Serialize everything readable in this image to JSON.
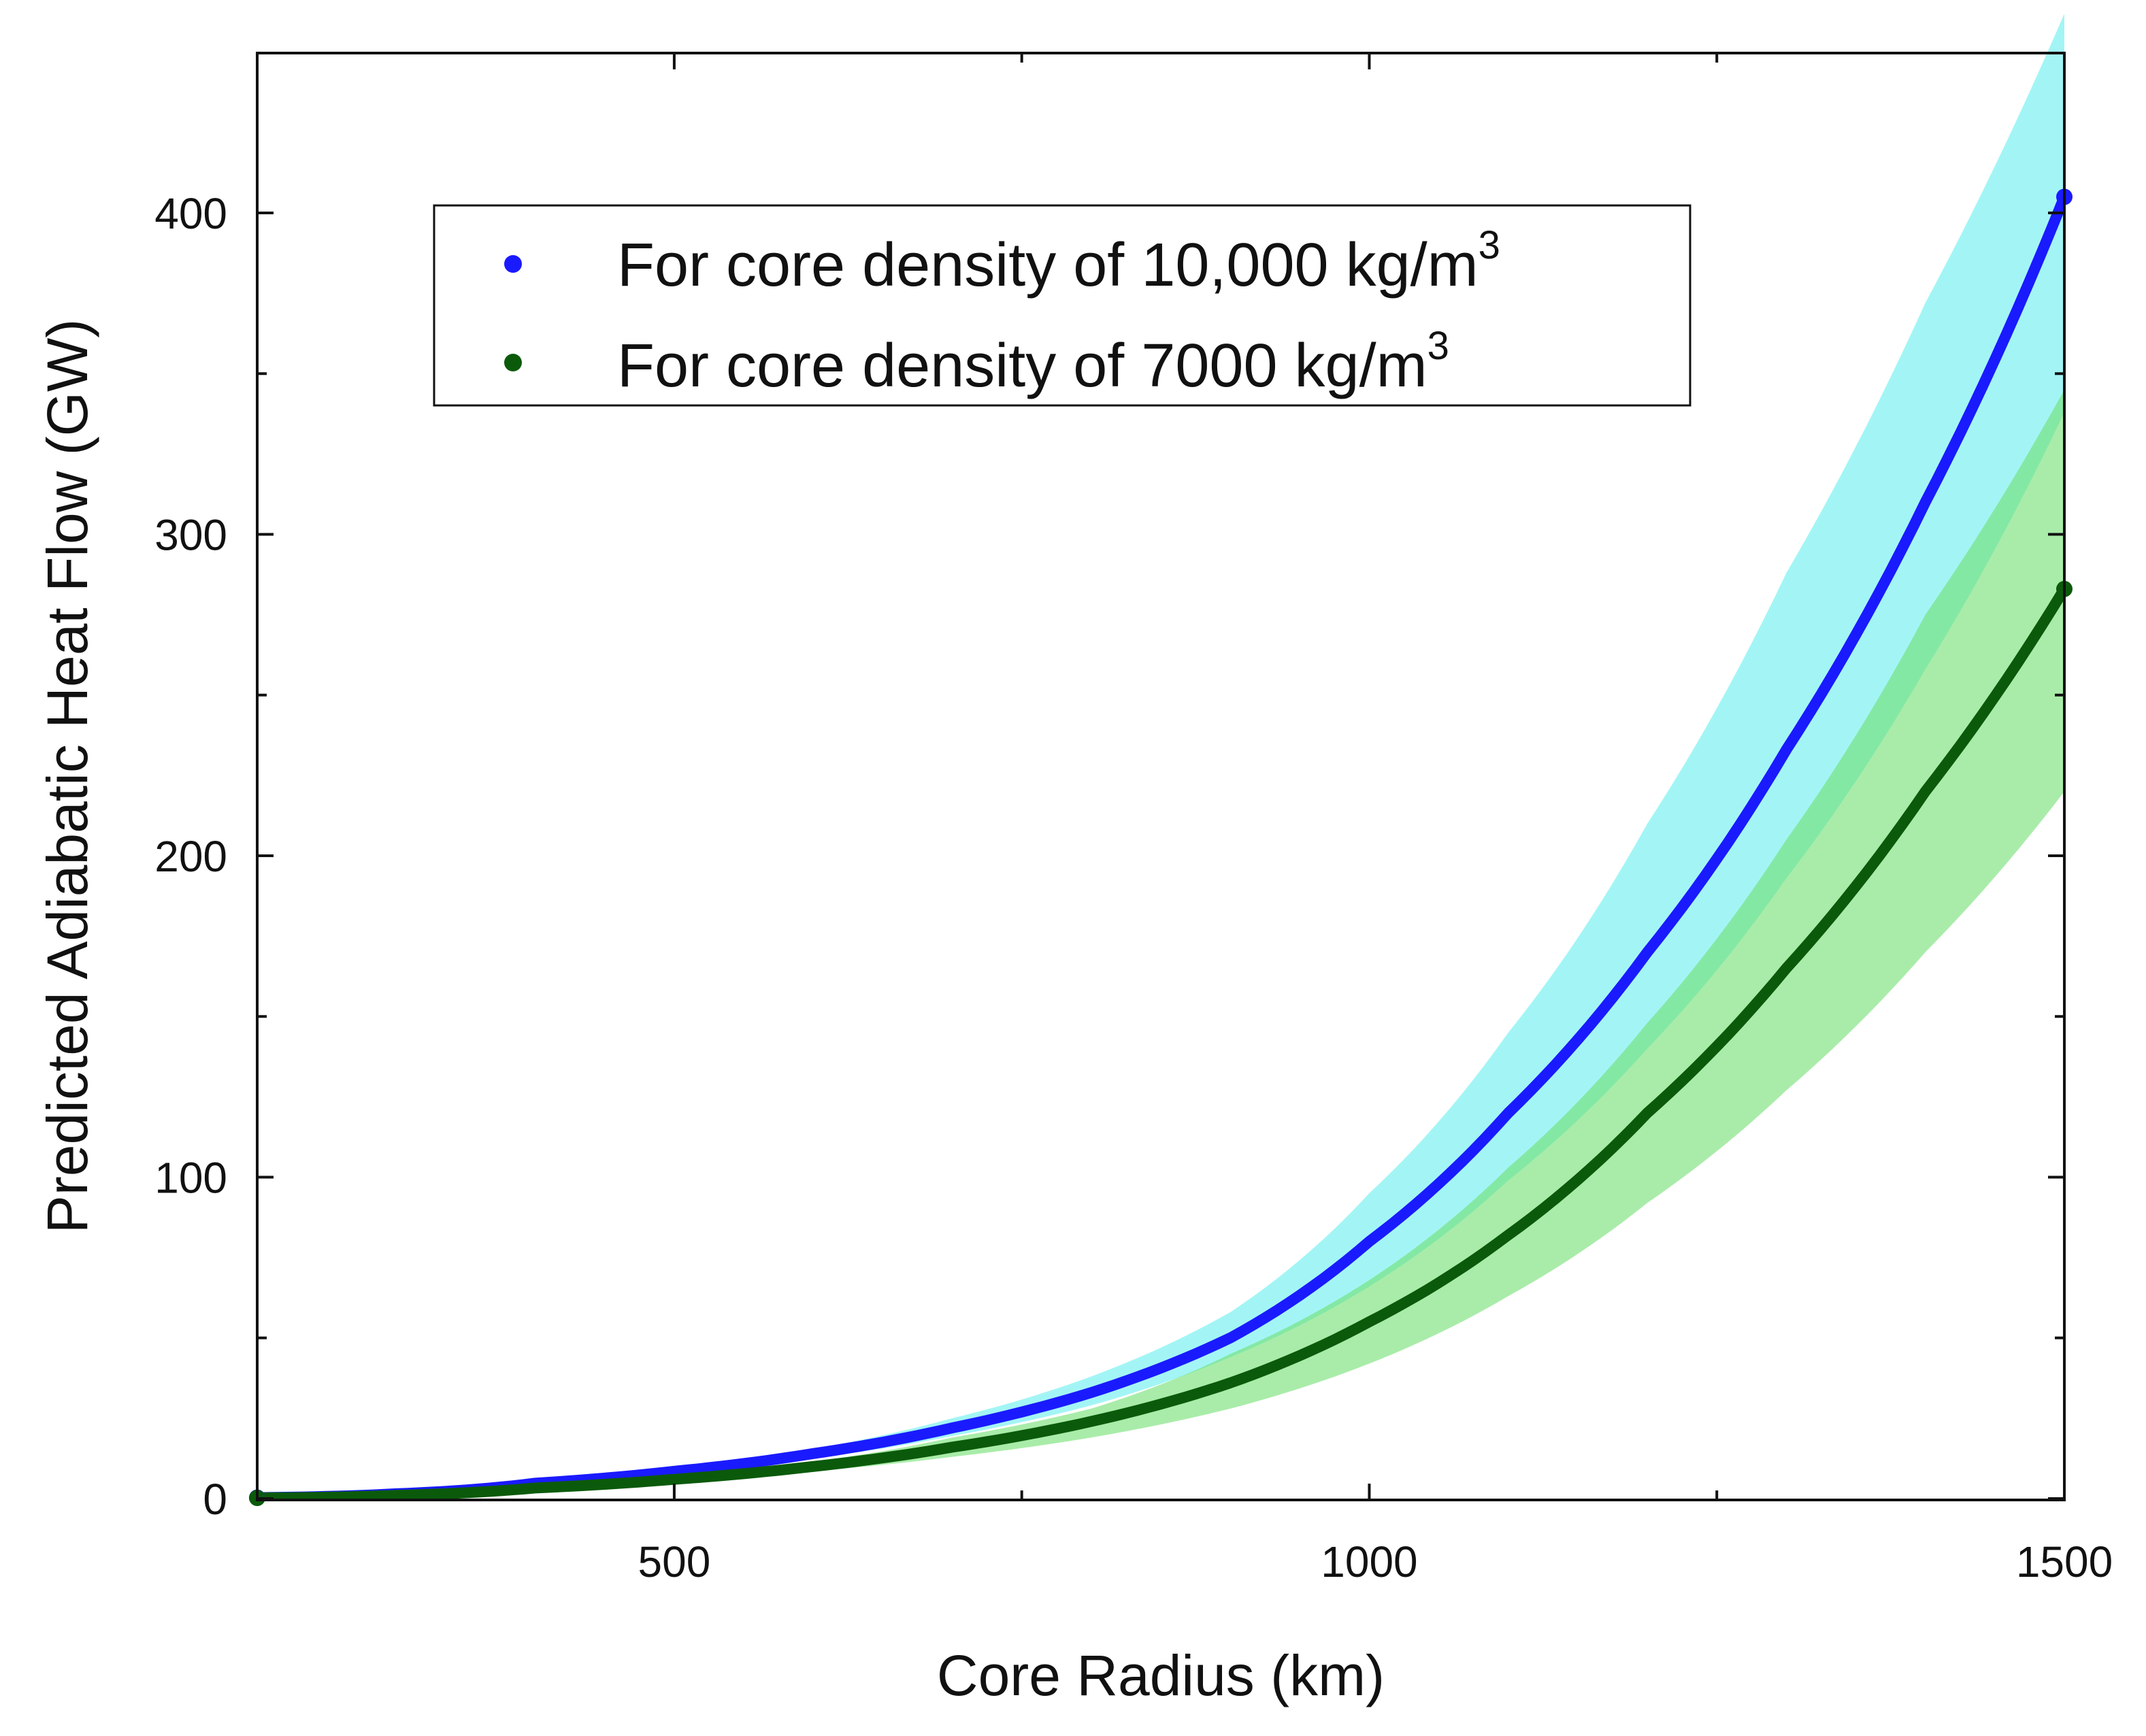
{
  "chart_data": {
    "type": "line",
    "title": "",
    "xlabel": "Core Radius (km)",
    "ylabel": "Predicted Adiabatic Heat Flow (GW)",
    "xlim": [
      200,
      1500
    ],
    "ylim": [
      0,
      450
    ],
    "x_ticks_major": [
      500,
      1000,
      1500
    ],
    "x_tick_labels": [
      "500",
      "1000",
      "1500"
    ],
    "x_ticks_minor": [
      750,
      1250
    ],
    "y_ticks_major": [
      0,
      100,
      200,
      300,
      400
    ],
    "y_tick_labels": [
      "0",
      "100",
      "200",
      "300",
      "400"
    ],
    "y_ticks_minor": [
      50,
      150,
      250,
      350
    ],
    "grid": false,
    "legend_position": "top-center",
    "series": [
      {
        "name": "For core density of 10,000 kg/m3",
        "label_main": "For core density of 10,000 kg/m",
        "label_sup": "3",
        "color": "#1a1aff",
        "band_color": "#66eeee",
        "x": [
          200,
          300,
          400,
          500,
          600,
          700,
          800,
          900,
          1000,
          1100,
          1200,
          1300,
          1400,
          1500
        ],
        "y": [
          0.3,
          1.5,
          4.8,
          8.5,
          14,
          22,
          33,
          50,
          80,
          120,
          170,
          233,
          310,
          405
        ],
        "lower": [
          0.3,
          1.4,
          4.3,
          7.6,
          12.5,
          19.5,
          29,
          44,
          66,
          99,
          140,
          193,
          258,
          338
        ],
        "upper": [
          0.3,
          1.6,
          5.3,
          9.5,
          15.5,
          25,
          38,
          58,
          95,
          145,
          210,
          288,
          372,
          462
        ]
      },
      {
        "name": "For core density of 7000 kg/m3",
        "label_main": "For core density of 7000 kg/m",
        "label_sup": "3",
        "color": "#0b5a0b",
        "band_color": "#6fe06f",
        "x": [
          200,
          300,
          400,
          500,
          600,
          700,
          800,
          900,
          1000,
          1100,
          1200,
          1300,
          1400,
          1500
        ],
        "y": [
          0.2,
          1.0,
          3.3,
          6,
          10,
          16,
          24,
          36,
          55,
          82,
          120,
          165,
          220,
          283
        ],
        "lower": [
          0.2,
          0.9,
          2.9,
          5.2,
          8.5,
          13,
          19,
          28,
          42,
          63,
          92,
          127,
          170,
          220
        ],
        "upper": [
          0.2,
          1.1,
          3.7,
          6.8,
          11.5,
          19,
          28,
          45,
          68,
          103,
          148,
          205,
          275,
          345
        ]
      }
    ]
  }
}
